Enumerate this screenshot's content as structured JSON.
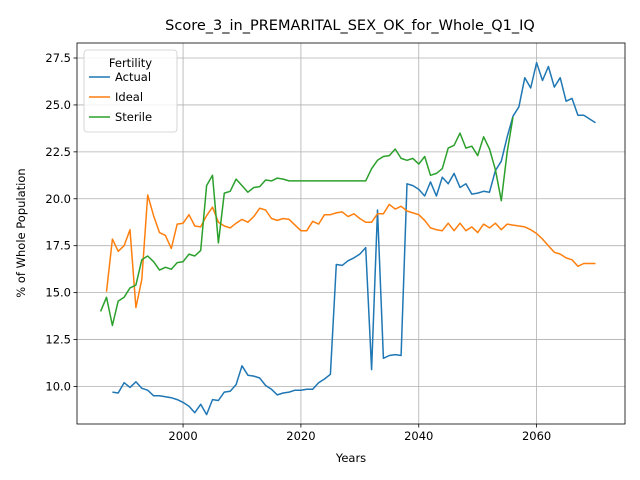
{
  "chart_data": {
    "type": "line",
    "title": "Score_3_in_PREMARITAL_SEX_OK_for_Whole_Q1_IQ",
    "xlabel": "Years",
    "ylabel": "% of Whole Population",
    "xlim": [
      1982,
      2075
    ],
    "ylim": [
      8.0,
      28.3
    ],
    "xticks": [
      2000,
      2020,
      2040,
      2060
    ],
    "yticks": [
      10.0,
      12.5,
      15.0,
      17.5,
      20.0,
      22.5,
      25.0,
      27.5
    ],
    "grid": true,
    "legend": {
      "title": "Fertility",
      "placement": "upper left"
    },
    "series": [
      {
        "name": "Actual",
        "color": "#1f77b4",
        "x": [
          1988,
          1989,
          1990,
          1991,
          1992,
          1993,
          1994,
          1995,
          1996,
          1997,
          1998,
          1999,
          2000,
          2001,
          2002,
          2003,
          2004,
          2005,
          2006,
          2007,
          2008,
          2009,
          2010,
          2011,
          2012,
          2013,
          2014,
          2015,
          2016,
          2017,
          2018,
          2019,
          2020,
          2021,
          2022,
          2023,
          2024,
          2025,
          2026,
          2027,
          2028,
          2029,
          2030,
          2031,
          2032,
          2033,
          2034,
          2035,
          2036,
          2037,
          2038,
          2039,
          2040,
          2041,
          2042,
          2043,
          2044,
          2045,
          2046,
          2047,
          2048,
          2049,
          2050,
          2051,
          2052,
          2053,
          2054,
          2055,
          2056,
          2057,
          2058,
          2059,
          2060,
          2061,
          2062,
          2063,
          2064,
          2065,
          2066,
          2067,
          2068,
          2070
        ],
        "values": [
          9.7,
          9.65,
          10.2,
          9.95,
          10.25,
          9.9,
          9.8,
          9.5,
          9.5,
          9.45,
          9.4,
          9.3,
          9.15,
          8.95,
          8.6,
          9.05,
          8.5,
          9.3,
          9.25,
          9.7,
          9.75,
          10.1,
          11.1,
          10.6,
          10.55,
          10.45,
          10.05,
          9.85,
          9.55,
          9.65,
          9.7,
          9.8,
          9.8,
          9.85,
          9.85,
          10.2,
          10.4,
          10.65,
          16.5,
          16.45,
          16.7,
          16.85,
          17.05,
          17.4,
          10.9,
          19.4,
          11.5,
          11.65,
          11.7,
          11.65,
          20.8,
          20.7,
          20.5,
          20.15,
          20.9,
          20.15,
          21.15,
          20.8,
          21.35,
          20.6,
          20.8,
          20.25,
          20.3,
          20.4,
          20.35,
          21.5,
          22.0,
          23.3,
          24.4,
          24.9,
          26.45,
          25.9,
          27.25,
          26.3,
          27.05,
          25.95,
          26.45,
          25.2,
          25.35,
          24.45,
          24.45,
          24.05
        ]
      },
      {
        "name": "Ideal",
        "color": "#ff7f0e",
        "x": [
          1987,
          1988,
          1989,
          1990,
          1991,
          1992,
          1993,
          1994,
          1995,
          1996,
          1997,
          1998,
          1999,
          2000,
          2001,
          2002,
          2003,
          2004,
          2005,
          2006,
          2007,
          2008,
          2009,
          2010,
          2011,
          2012,
          2013,
          2014,
          2015,
          2016,
          2017,
          2018,
          2019,
          2020,
          2021,
          2022,
          2023,
          2024,
          2025,
          2026,
          2027,
          2028,
          2029,
          2030,
          2031,
          2032,
          2033,
          2034,
          2035,
          2036,
          2037,
          2038,
          2039,
          2040,
          2041,
          2042,
          2043,
          2044,
          2045,
          2046,
          2047,
          2048,
          2049,
          2050,
          2051,
          2052,
          2053,
          2054,
          2055,
          2056,
          2057,
          2058,
          2059,
          2060,
          2061,
          2062,
          2063,
          2064,
          2065,
          2066,
          2067,
          2068,
          2070
        ],
        "values": [
          15.05,
          17.85,
          17.2,
          17.5,
          18.35,
          14.2,
          15.7,
          20.2,
          19.1,
          18.2,
          18.05,
          17.35,
          18.65,
          18.7,
          19.15,
          18.55,
          18.5,
          19.1,
          19.55,
          18.75,
          18.55,
          18.45,
          18.7,
          18.9,
          18.75,
          19.05,
          19.5,
          19.4,
          18.95,
          18.85,
          18.95,
          18.9,
          18.6,
          18.3,
          18.3,
          18.8,
          18.65,
          19.15,
          19.15,
          19.25,
          19.3,
          19.05,
          19.2,
          18.95,
          18.75,
          18.75,
          19.2,
          19.2,
          19.7,
          19.45,
          19.6,
          19.35,
          19.25,
          19.15,
          18.85,
          18.45,
          18.35,
          18.3,
          18.7,
          18.3,
          18.7,
          18.3,
          18.5,
          18.2,
          18.65,
          18.45,
          18.7,
          18.35,
          18.65,
          18.6,
          18.55,
          18.5,
          18.35,
          18.15,
          17.85,
          17.5,
          17.15,
          17.05,
          16.85,
          16.75,
          16.4,
          16.55,
          16.55
        ]
      },
      {
        "name": "Sterile",
        "color": "#2ca02c",
        "x": [
          1986,
          1987,
          1988,
          1989,
          1990,
          1991,
          1992,
          1993,
          1994,
          1995,
          1996,
          1997,
          1998,
          1999,
          2000,
          2001,
          2002,
          2003,
          2004,
          2005,
          2006,
          2007,
          2008,
          2009,
          2010,
          2011,
          2012,
          2013,
          2014,
          2015,
          2016,
          2017,
          2018,
          2020,
          2025,
          2031,
          2032,
          2033,
          2034,
          2035,
          2036,
          2037,
          2038,
          2039,
          2040,
          2041,
          2042,
          2043,
          2044,
          2045,
          2046,
          2047,
          2048,
          2049,
          2050,
          2051,
          2052,
          2053,
          2054,
          2055,
          2056
        ],
        "values": [
          14.0,
          14.75,
          13.25,
          14.55,
          14.75,
          15.25,
          15.4,
          16.75,
          16.95,
          16.65,
          16.2,
          16.35,
          16.25,
          16.6,
          16.65,
          17.05,
          16.95,
          17.25,
          20.7,
          21.25,
          17.65,
          20.3,
          20.4,
          21.05,
          20.7,
          20.35,
          20.6,
          20.65,
          21.0,
          20.95,
          21.1,
          21.05,
          20.95,
          20.95,
          20.95,
          20.95,
          21.6,
          22.05,
          22.25,
          22.3,
          22.65,
          22.15,
          22.05,
          22.15,
          21.85,
          22.25,
          21.25,
          21.35,
          21.6,
          22.7,
          22.85,
          23.5,
          22.7,
          22.8,
          22.3,
          23.3,
          22.65,
          21.55,
          19.9,
          22.5,
          24.35
        ]
      }
    ]
  }
}
